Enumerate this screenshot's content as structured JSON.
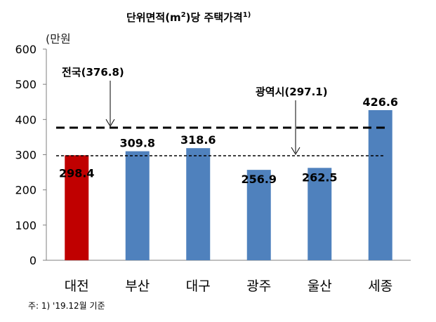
{
  "chart_data": {
    "type": "bar",
    "title_main": "단위면적(m",
    "title_sup": "2",
    "title_rest": ")당 주택가격",
    "title_note": "1)",
    "unit": "(만원",
    "categories": [
      "대전",
      "부산",
      "대구",
      "광주",
      "울산",
      "세종"
    ],
    "values": [
      298.4,
      309.8,
      318.6,
      256.9,
      262.5,
      426.6
    ],
    "value_labels": [
      "298.4",
      "309.8",
      "318.6",
      "256.9",
      "262.5",
      "426.6"
    ],
    "bar_colors": [
      "#c00000",
      "#4f81bd",
      "#4f81bd",
      "#4f81bd",
      "#4f81bd",
      "#4f81bd"
    ],
    "ylim": [
      0,
      600
    ],
    "yticks": [
      "0",
      "100",
      "200",
      "300",
      "400",
      "500",
      "600"
    ],
    "reference_lines": [
      {
        "label": "전국(376.8)",
        "value": 376.8,
        "style": "long-dash"
      },
      {
        "label": "광역시(297.1)",
        "value": 297.1,
        "style": "short-dash"
      }
    ],
    "footnote": "주: 1) '19.12월 기준",
    "grid": false
  }
}
